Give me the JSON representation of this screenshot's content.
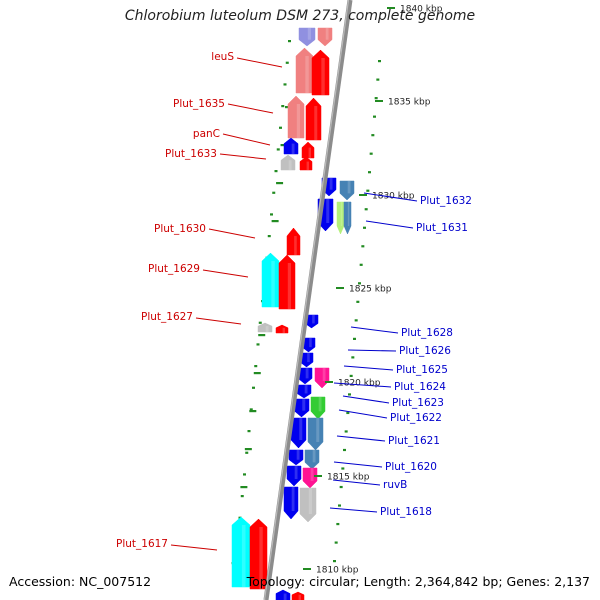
{
  "title": "Chlorobium luteolum DSM 273, complete genome",
  "footer": {
    "accession": "Accession: NC_007512",
    "topology": "Topology: circular; Length: 2,364,842 bp; Genes: 2,137"
  },
  "colors": {
    "reverse_label": "#cc0000",
    "forward_label": "#0000cc",
    "red": "#ff0000",
    "pink": "#f08080",
    "blue": "#0000ee",
    "cyan": "#00ffff",
    "grey": "#c0c0c0",
    "steel": "#4682b4",
    "green": "#33cc33",
    "lightgreen": "#b4f07a",
    "magenta": "#ff1493",
    "lavender": "#9090e0",
    "tick": "#228b22"
  },
  "ruler_ticks": [
    {
      "label": "1840 kbp"
    },
    {
      "label": "1835 kbp"
    },
    {
      "label": "1830 kbp"
    },
    {
      "label": "1825 kbp"
    },
    {
      "label": "1820 kbp"
    },
    {
      "label": "1815 kbp"
    },
    {
      "label": "1810 kbp"
    }
  ],
  "reverse_gene_labels": [
    {
      "label": "leuS"
    },
    {
      "label": "Plut_1635"
    },
    {
      "label": "panC"
    },
    {
      "label": "Plut_1633"
    },
    {
      "label": "Plut_1630"
    },
    {
      "label": "Plut_1629"
    },
    {
      "label": "Plut_1627"
    },
    {
      "label": "Plut_1617"
    }
  ],
  "forward_gene_labels": [
    {
      "label": "Plut_1632"
    },
    {
      "label": "Plut_1631"
    },
    {
      "label": "Plut_1628"
    },
    {
      "label": "Plut_1626"
    },
    {
      "label": "Plut_1625"
    },
    {
      "label": "Plut_1624"
    },
    {
      "label": "Plut_1623"
    },
    {
      "label": "Plut_1622"
    },
    {
      "label": "Plut_1621"
    },
    {
      "label": "Plut_1620"
    },
    {
      "label": "ruvB"
    },
    {
      "label": "Plut_1618"
    }
  ]
}
